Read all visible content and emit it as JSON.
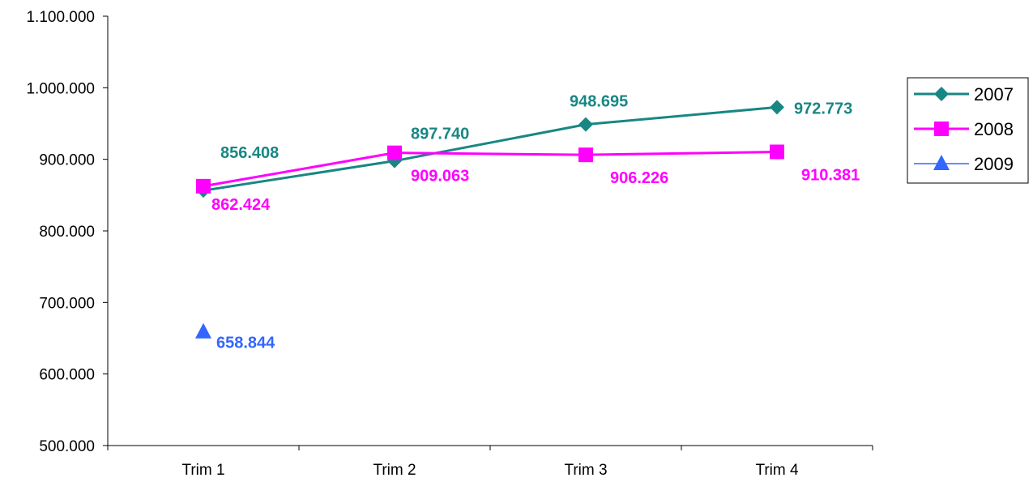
{
  "chart_data": {
    "type": "line",
    "title": "",
    "xlabel": "",
    "ylabel": "",
    "categories": [
      "Trim 1",
      "Trim 2",
      "Trim 3",
      "Trim 4"
    ],
    "ylim": [
      500000,
      1100000
    ],
    "yticks": [
      500000,
      600000,
      700000,
      800000,
      900000,
      1000000,
      1100000
    ],
    "ytick_labels": [
      "500.000",
      "600.000",
      "700.000",
      "800.000",
      "900.000",
      "1.000.000",
      "1.100.000"
    ],
    "grid": false,
    "legend_position": "right",
    "series": [
      {
        "name": "2007",
        "color": "#188784",
        "marker": "diamond",
        "values": [
          856408,
          897740,
          948695,
          972773
        ],
        "labels": [
          "856.408",
          "897.740",
          "948.695",
          "972.773"
        ]
      },
      {
        "name": "2008",
        "color": "#ff00ff",
        "marker": "square",
        "values": [
          862424,
          909063,
          906226,
          910381
        ],
        "labels": [
          "862.424",
          "909.063",
          "906.226",
          "910.381"
        ]
      },
      {
        "name": "2009",
        "color": "#3366ff",
        "marker": "triangle",
        "values": [
          658844,
          null,
          null,
          null
        ],
        "labels": [
          "658.844",
          null,
          null,
          null
        ]
      }
    ]
  }
}
